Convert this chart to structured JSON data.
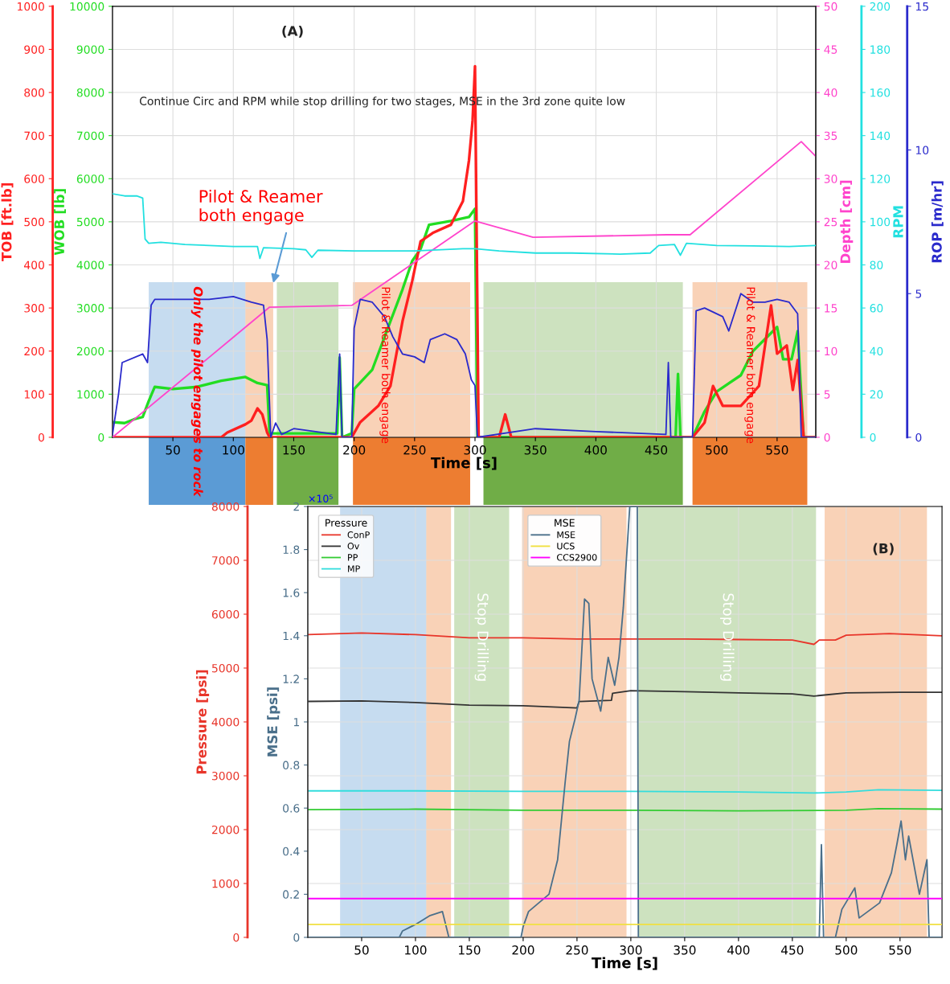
{
  "chart_data": [
    {
      "type": "line",
      "xlabel": "Time [s]",
      "ylabel": "WOB [lb]",
      "y2label": "TOB [ft.lb]",
      "xlim": [
        0,
        582
      ],
      "xticks": [
        50,
        100,
        150,
        200,
        250,
        300,
        350,
        400,
        450,
        500,
        550
      ],
      "ylim": [
        0,
        10000
      ],
      "yticks": [
        0,
        1000,
        2000,
        3000,
        4000,
        5000,
        6000,
        7000,
        8000,
        9000,
        10000
      ],
      "y2lim": [
        0,
        1000
      ],
      "y2ticks": [
        0,
        100,
        200,
        300,
        400,
        500,
        600,
        700,
        800,
        900,
        1000
      ],
      "grid": true,
      "series": [
        {
          "axis": "y",
          "color": "#22dd22",
          "x": [
            0,
            10,
            18,
            25,
            30,
            35,
            50,
            70,
            90,
            110,
            120,
            128,
            130,
            135,
            186,
            188,
            190,
            198,
            200,
            215,
            230,
            240,
            248,
            255,
            262,
            280,
            295,
            300,
            302,
            466,
            468,
            470,
            480,
            490,
            500,
            510,
            520,
            530,
            540,
            550,
            555,
            562,
            567,
            572,
            582
          ],
          "values": [
            350,
            330,
            420,
            470,
            840,
            1170,
            1120,
            1170,
            1310,
            1400,
            1260,
            1210,
            90,
            90,
            90,
            1850,
            0,
            90,
            1120,
            1570,
            2690,
            3430,
            4090,
            4370,
            4930,
            5020,
            5110,
            5300,
            0,
            0,
            1470,
            0,
            0,
            600,
            1060,
            1250,
            1440,
            2000,
            2280,
            2560,
            1810,
            1810,
            2460,
            0,
            0
          ]
        },
        {
          "axis": "y2",
          "color": "#ff2020",
          "x": [
            0,
            90,
            95,
            110,
            115,
            120,
            124,
            128,
            130,
            198,
            205,
            220,
            230,
            235,
            240,
            248,
            255,
            265,
            280,
            290,
            295,
            298,
            300,
            303,
            320,
            325,
            330,
            480,
            490,
            497,
            505,
            520,
            535,
            545,
            550,
            558,
            563,
            567,
            572,
            582
          ],
          "values": [
            0,
            0,
            11,
            30,
            39,
            67,
            53,
            11,
            0,
            0,
            35,
            73,
            119,
            194,
            269,
            362,
            455,
            474,
            493,
            548,
            642,
            735,
            861,
            0,
            0,
            53,
            0,
            0,
            34,
            119,
            73,
            73,
            119,
            306,
            194,
            213,
            110,
            179,
            0,
            0
          ]
        }
      ],
      "bands": [
        {
          "axis": "x",
          "from": 30,
          "to": 110,
          "color": "#5b9bd5",
          "label": "Only the pilot engages to rock"
        },
        {
          "axis": "x",
          "from": 110,
          "to": 133,
          "color": "#ed7d31",
          "label": null
        },
        {
          "axis": "x",
          "from": 136,
          "to": 187,
          "color": "#70ad47",
          "label": null
        },
        {
          "axis": "x",
          "from": 199,
          "to": 296,
          "color": "#ed7d31",
          "label": "Pilot & Reamer both engage"
        },
        {
          "axis": "x",
          "from": 307,
          "to": 472,
          "color": "#70ad47",
          "label": null
        },
        {
          "axis": "x",
          "from": 480,
          "to": 575,
          "color": "#ed7d31",
          "label": "Pilot & Reamer both engage"
        }
      ],
      "annotations": [
        "(A)",
        "Continue Circ and RPM while stop drilling for two stages, MSE in the 3rd zone quite low",
        {
          "text": "Pilot & Reamer\nboth engage",
          "x": 133,
          "y": 3580
        }
      ]
    },
    {
      "type": "line",
      "ylabel": "Depth [cm]",
      "y2label": "RPM",
      "y3label": "ROP [m/hr]",
      "tick_labels": "y",
      "y3lim": [
        0,
        15
      ],
      "y3ticks": [
        0,
        5,
        10,
        15
      ],
      "xlim": [
        0,
        582
      ],
      "ylim": [
        0,
        50
      ],
      "yticks": [
        0,
        5,
        10,
        15,
        20,
        25,
        30,
        35,
        40,
        45,
        50
      ],
      "y2lim": [
        0,
        200
      ],
      "y2ticks": [
        0,
        20,
        40,
        60,
        80,
        100,
        120,
        140,
        160,
        180,
        200
      ],
      "series": [
        {
          "axis": "y",
          "color": "#ff44cc",
          "x": [
            0,
            50,
            100,
            130,
            198,
            300,
            348,
            459,
            478,
            570,
            582
          ],
          "values": [
            0,
            5.8,
            11.6,
            15.1,
            15.3,
            25.1,
            23.2,
            23.5,
            23.5,
            34.3,
            32.6
          ]
        },
        {
          "axis": "y2",
          "color": "#22e0e0",
          "x": [
            0,
            10,
            20,
            25,
            27,
            30,
            40,
            60,
            80,
            100,
            120,
            122,
            125,
            150,
            160,
            165,
            170,
            200,
            250,
            290,
            300,
            320,
            350,
            380,
            420,
            445,
            452,
            465,
            470,
            475,
            500,
            530,
            560,
            582
          ],
          "values": [
            113,
            112,
            112,
            111,
            92,
            90,
            90.5,
            89.5,
            89,
            88.5,
            88.5,
            83,
            88,
            87.5,
            87,
            83.5,
            86.8,
            86.5,
            86.5,
            87.5,
            87.5,
            86.5,
            85.5,
            85.5,
            85,
            85.5,
            89,
            89.5,
            84.5,
            90,
            89,
            88.8,
            88.5,
            89
          ]
        },
        {
          "axis": "y3",
          "color": "#2a2acc",
          "x": [
            0,
            5,
            8,
            25,
            29,
            32,
            35,
            50,
            80,
            100,
            115,
            125,
            128,
            131,
            135,
            140,
            150,
            185,
            188,
            190,
            198,
            200,
            205,
            215,
            225,
            232,
            240,
            250,
            258,
            263,
            275,
            285,
            292,
            297,
            300,
            302,
            350,
            400,
            458,
            460,
            462,
            480,
            483,
            490,
            505,
            510,
            520,
            530,
            540,
            550,
            560,
            567,
            570,
            582
          ],
          "values": [
            0.1,
            1.5,
            2.6,
            2.9,
            2.6,
            4.6,
            4.8,
            4.8,
            4.8,
            4.9,
            4.7,
            4.6,
            3.4,
            0,
            0.5,
            0.1,
            0.3,
            0.1,
            2.9,
            0,
            0,
            3.8,
            4.8,
            4.7,
            4.2,
            3.5,
            2.9,
            2.8,
            2.6,
            3.4,
            3.6,
            3.4,
            2.9,
            2.0,
            1.8,
            0,
            0.3,
            0.2,
            0.1,
            2.6,
            0,
            0,
            4.4,
            4.5,
            4.2,
            3.7,
            5.0,
            4.7,
            4.7,
            4.8,
            4.7,
            4.3,
            0,
            0
          ]
        }
      ]
    },
    {
      "type": "line",
      "xlabel": "Time [s]",
      "ylabel": "Pressure [psi]",
      "y2label": "MSE [psi]",
      "xlim": [
        0,
        589
      ],
      "xticks": [
        50,
        100,
        150,
        200,
        250,
        300,
        350,
        400,
        450,
        500,
        550
      ],
      "ylim": [
        0,
        8000
      ],
      "yticks": [
        0,
        1000,
        2000,
        3000,
        4000,
        5000,
        6000,
        7000,
        8000
      ],
      "y2lim": [
        0,
        2
      ],
      "y2ticks": [
        0,
        0.2,
        0.4,
        0.6,
        0.8,
        1,
        1.2,
        1.4,
        1.6,
        1.8,
        2
      ],
      "grid": true,
      "legend": "top left",
      "legend_title": [
        "Pressure",
        "MSE"
      ],
      "series": [
        {
          "name": "ConP",
          "axis": "y",
          "color": "#e8352a",
          "x": [
            0,
            50,
            100,
            150,
            200,
            250,
            300,
            350,
            400,
            450,
            470,
            475,
            490,
            500,
            540,
            589
          ],
          "values": [
            5620,
            5650,
            5620,
            5560,
            5560,
            5540,
            5540,
            5540,
            5530,
            5520,
            5440,
            5520,
            5520,
            5610,
            5640,
            5600
          ]
        },
        {
          "name": "Ov",
          "axis": "y",
          "color": "#333333",
          "x": [
            0,
            50,
            100,
            150,
            200,
            250,
            252,
            282,
            283,
            300,
            350,
            400,
            450,
            470,
            480,
            500,
            550,
            589
          ],
          "values": [
            4380,
            4390,
            4360,
            4310,
            4300,
            4260,
            4380,
            4400,
            4530,
            4580,
            4560,
            4540,
            4520,
            4480,
            4500,
            4540,
            4550,
            4550
          ]
        },
        {
          "name": "PP",
          "axis": "y",
          "color": "#33cc33",
          "x": [
            0,
            100,
            200,
            300,
            400,
            500,
            530,
            589
          ],
          "values": [
            2370,
            2380,
            2360,
            2360,
            2350,
            2360,
            2390,
            2380
          ]
        },
        {
          "name": "MP",
          "axis": "y",
          "color": "#33dddd",
          "x": [
            0,
            100,
            200,
            300,
            400,
            470,
            500,
            530,
            589
          ],
          "values": [
            2720,
            2720,
            2710,
            2710,
            2700,
            2680,
            2700,
            2740,
            2730
          ]
        },
        {
          "name": "MSE",
          "axis": "y2",
          "color": "#4a6f8a",
          "x": [
            0,
            85,
            88,
            100,
            113,
            125,
            131,
            135,
            198,
            200,
            205,
            224,
            232,
            239,
            243,
            248,
            252,
            257,
            261,
            264,
            272,
            279,
            285,
            289,
            293,
            297,
            299,
            306,
            307,
            473,
            475,
            477,
            479,
            490,
            496,
            508,
            512,
            531,
            542,
            547,
            551,
            555,
            558,
            568,
            575,
            577,
            589
          ],
          "values": [
            0,
            0,
            0.03,
            0.06,
            0.1,
            0.12,
            0,
            0,
            0,
            0.05,
            0.12,
            0.2,
            0.36,
            0.72,
            0.91,
            1.01,
            1.1,
            1.57,
            1.55,
            1.2,
            1.05,
            1.3,
            1.17,
            1.3,
            1.53,
            1.84,
            2,
            2,
            0,
            0,
            0,
            0.43,
            0,
            0,
            0.13,
            0.23,
            0.09,
            0.16,
            0.3,
            0.43,
            0.54,
            0.36,
            0.47,
            0.2,
            0.36,
            0,
            0
          ]
        },
        {
          "name": "UCS",
          "axis": "y2",
          "color": "#f0e040",
          "x": [
            0,
            589
          ],
          "values": [
            0.06,
            0.06
          ]
        },
        {
          "name": "CCS2900",
          "axis": "y2",
          "color": "#ff00ff",
          "x": [
            0,
            589
          ],
          "values": [
            0.18,
            0.18
          ]
        }
      ],
      "bands": [
        {
          "axis": "x",
          "from": 30,
          "to": 110,
          "color": "#5b9bd5",
          "label": null
        },
        {
          "axis": "x",
          "from": 110,
          "to": 133,
          "color": "#ed7d31",
          "label": null
        },
        {
          "axis": "x",
          "from": 136,
          "to": 187,
          "color": "#70ad47",
          "label": "Stop Drilling"
        },
        {
          "axis": "x",
          "from": 199,
          "to": 296,
          "color": "#ed7d31",
          "label": null
        },
        {
          "axis": "x",
          "from": 307,
          "to": 472,
          "color": "#70ad47",
          "label": "Stop Drilling"
        },
        {
          "axis": "x",
          "from": 480,
          "to": 575,
          "color": "#ed7d31",
          "label": null
        }
      ],
      "annotations": [
        "(B)",
        "×10⁵"
      ]
    }
  ]
}
